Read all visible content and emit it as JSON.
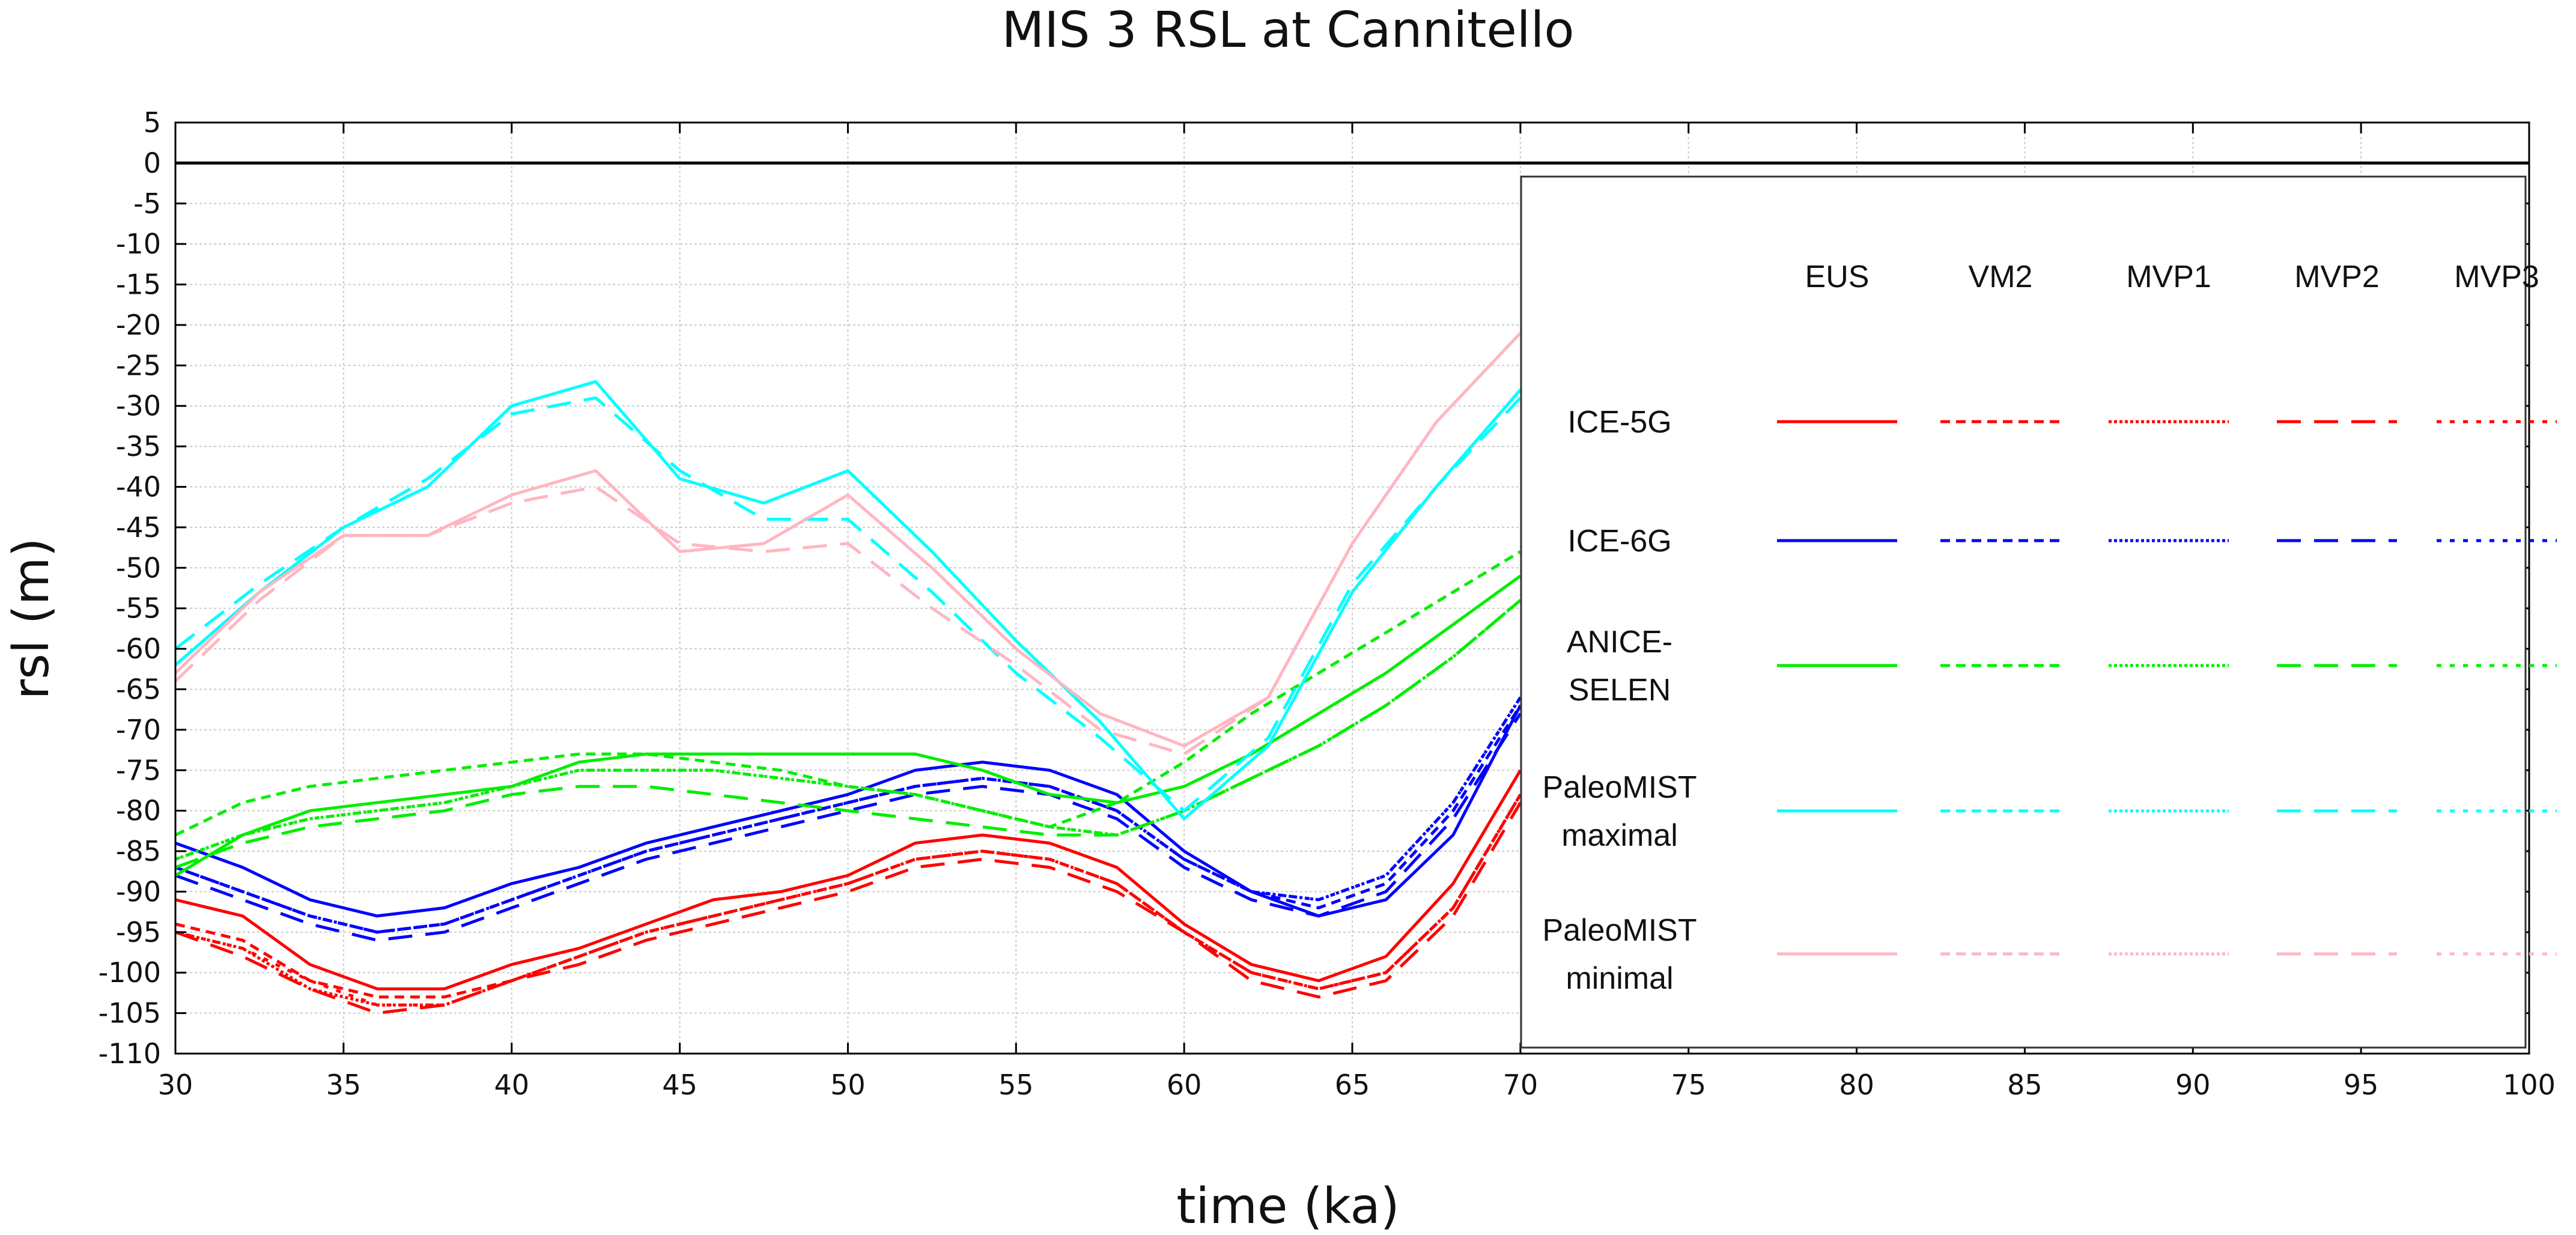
{
  "chart_data": {
    "type": "line",
    "title": "MIS 3 RSL at Cannitello",
    "xlabel": "time (ka)",
    "ylabel": "rsl (m)",
    "xlim": [
      30,
      100
    ],
    "ylim": [
      -110,
      5
    ],
    "xticks": [
      30,
      35,
      40,
      45,
      50,
      55,
      60,
      65,
      70,
      75,
      80,
      85,
      90,
      95,
      100
    ],
    "yticks": [
      5,
      0,
      -5,
      -10,
      -15,
      -20,
      -25,
      -30,
      -35,
      -40,
      -45,
      -50,
      -55,
      -60,
      -65,
      -70,
      -75,
      -80,
      -85,
      -90,
      -95,
      -100,
      -105,
      -110
    ],
    "grid": true,
    "zero_line": 0,
    "legend": {
      "placement": "right",
      "columns": [
        "EUS",
        "VM2",
        "MVP1",
        "MVP2",
        "MVP3"
      ],
      "rows": [
        {
          "label": [
            "ICE-5G"
          ],
          "color": "#ff0000"
        },
        {
          "label": [
            "ICE-6G"
          ],
          "color": "#0000ff"
        },
        {
          "label": [
            "ANICE-",
            "SELEN"
          ],
          "color": "#00ee00"
        },
        {
          "label": [
            "PaleoMIST",
            "maximal"
          ],
          "color": "#00ffff"
        },
        {
          "label": [
            "PaleoMIST",
            "minimal"
          ],
          "color": "#ffb6c1"
        }
      ],
      "styles": [
        {
          "name": "EUS",
          "dash": "solid"
        },
        {
          "name": "VM2",
          "dash": "short-dash"
        },
        {
          "name": "MVP1",
          "dash": "fine-dot"
        },
        {
          "name": "MVP2",
          "dash": "long-dash"
        },
        {
          "name": "MVP3",
          "dash": "dotted"
        }
      ]
    },
    "series": [
      {
        "name": "ICE-5G EUS",
        "color": "#ff0000",
        "dash": "solid",
        "x": [
          30,
          32,
          34,
          36,
          38,
          40,
          42,
          44,
          46,
          48,
          50,
          52,
          54,
          56,
          58,
          60,
          62,
          64,
          66,
          68,
          70
        ],
        "y": [
          -91,
          -93,
          -99,
          -102,
          -102,
          -99,
          -97,
          -94,
          -91,
          -90,
          -88,
          -84,
          -83,
          -84,
          -87,
          -94,
          -99,
          -101,
          -98,
          -89,
          -75
        ]
      },
      {
        "name": "ICE-5G VM2",
        "color": "#ff0000",
        "dash": "short-dash",
        "x": [
          30,
          32,
          34,
          36,
          38,
          40,
          42,
          44,
          46,
          48,
          50,
          52,
          54,
          56,
          58,
          60,
          62,
          64,
          66,
          68,
          70
        ],
        "y": [
          -94,
          -96,
          -101,
          -103,
          -103,
          -101,
          -98,
          -95,
          -93,
          -91,
          -89,
          -86,
          -85,
          -86,
          -89,
          -95,
          -100,
          -102,
          -100,
          -92,
          -78
        ]
      },
      {
        "name": "ICE-5G MVP1",
        "color": "#ff0000",
        "dash": "fine-dot",
        "x": [
          30,
          32,
          34,
          36,
          38,
          40,
          42,
          44,
          46,
          48,
          50,
          52,
          54,
          56,
          58,
          60,
          62,
          64,
          66,
          68,
          70
        ],
        "y": [
          -95,
          -97,
          -102,
          -104,
          -104,
          -101,
          -98,
          -95,
          -93,
          -91,
          -89,
          -86,
          -85,
          -86,
          -89,
          -95,
          -100,
          -102,
          -100,
          -92,
          -78
        ]
      },
      {
        "name": "ICE-5G MVP2",
        "color": "#ff0000",
        "dash": "long-dash",
        "x": [
          30,
          32,
          34,
          36,
          38,
          40,
          42,
          44,
          46,
          48,
          50,
          52,
          54,
          56,
          58,
          60,
          62,
          64,
          66,
          68,
          70
        ],
        "y": [
          -95,
          -98,
          -102,
          -105,
          -104,
          -101,
          -99,
          -96,
          -94,
          -92,
          -90,
          -87,
          -86,
          -87,
          -90,
          -95,
          -101,
          -103,
          -101,
          -93,
          -79
        ]
      },
      {
        "name": "ICE-5G MVP3",
        "color": "#ff0000",
        "dash": "dotted",
        "x": [
          30,
          32,
          34,
          36,
          38,
          40,
          42,
          44,
          46,
          48,
          50,
          52,
          54,
          56,
          58,
          60,
          62,
          64,
          66,
          68,
          70
        ],
        "y": [
          -95,
          -97,
          -101,
          -104,
          -104,
          -101,
          -98,
          -95,
          -93,
          -91,
          -89,
          -86,
          -85,
          -86,
          -89,
          -95,
          -100,
          -102,
          -100,
          -92,
          -78
        ]
      },
      {
        "name": "ICE-6G EUS",
        "color": "#0000ff",
        "dash": "solid",
        "x": [
          30,
          32,
          34,
          36,
          38,
          40,
          42,
          44,
          46,
          48,
          50,
          52,
          54,
          56,
          58,
          60,
          62,
          64,
          66,
          68,
          70
        ],
        "y": [
          -84,
          -87,
          -91,
          -93,
          -92,
          -89,
          -87,
          -84,
          -82,
          -80,
          -78,
          -75,
          -74,
          -75,
          -78,
          -85,
          -90,
          -93,
          -91,
          -83,
          -67
        ]
      },
      {
        "name": "ICE-6G VM2",
        "color": "#0000ff",
        "dash": "short-dash",
        "x": [
          30,
          32,
          34,
          36,
          38,
          40,
          42,
          44,
          46,
          48,
          50,
          52,
          54,
          56,
          58,
          60,
          62,
          64,
          66,
          68,
          70
        ],
        "y": [
          -87,
          -90,
          -93,
          -95,
          -94,
          -91,
          -88,
          -85,
          -83,
          -81,
          -79,
          -77,
          -76,
          -77,
          -80,
          -86,
          -90,
          -92,
          -89,
          -80,
          -67
        ]
      },
      {
        "name": "ICE-6G MVP1",
        "color": "#0000ff",
        "dash": "fine-dot",
        "x": [
          30,
          32,
          34,
          36,
          38,
          40,
          42,
          44,
          46,
          48,
          50,
          52,
          54,
          56,
          58,
          60,
          62,
          64,
          66,
          68,
          70
        ],
        "y": [
          -87,
          -90,
          -93,
          -95,
          -94,
          -91,
          -88,
          -85,
          -83,
          -81,
          -79,
          -77,
          -76,
          -77,
          -80,
          -86,
          -90,
          -91,
          -88,
          -79,
          -66
        ]
      },
      {
        "name": "ICE-6G MVP2",
        "color": "#0000ff",
        "dash": "long-dash",
        "x": [
          30,
          32,
          34,
          36,
          38,
          40,
          42,
          44,
          46,
          48,
          50,
          52,
          54,
          56,
          58,
          60,
          62,
          64,
          66,
          68,
          70
        ],
        "y": [
          -88,
          -91,
          -94,
          -96,
          -95,
          -92,
          -89,
          -86,
          -84,
          -82,
          -80,
          -78,
          -77,
          -78,
          -81,
          -87,
          -91,
          -93,
          -90,
          -81,
          -68
        ]
      },
      {
        "name": "ICE-6G MVP3",
        "color": "#0000ff",
        "dash": "dotted",
        "x": [
          30,
          32,
          34,
          36,
          38,
          40,
          42,
          44,
          46,
          48,
          50,
          52,
          54,
          56,
          58,
          60,
          62,
          64,
          66,
          68,
          70
        ],
        "y": [
          -87,
          -90,
          -93,
          -95,
          -94,
          -91,
          -88,
          -85,
          -83,
          -81,
          -79,
          -77,
          -76,
          -77,
          -80,
          -86,
          -90,
          -91,
          -88,
          -79,
          -66
        ]
      },
      {
        "name": "ANICE-SELEN EUS",
        "color": "#00ee00",
        "dash": "solid",
        "x": [
          30,
          32,
          34,
          36,
          38,
          40,
          42,
          44,
          46,
          48,
          50,
          52,
          54,
          56,
          58,
          60,
          62,
          64,
          66,
          68,
          70
        ],
        "y": [
          -88,
          -83,
          -80,
          -79,
          -78,
          -77,
          -74,
          -73,
          -73,
          -73,
          -73,
          -73,
          -75,
          -78,
          -79,
          -77,
          -73,
          -68,
          -63,
          -57,
          -51
        ]
      },
      {
        "name": "ANICE-SELEN VM2",
        "color": "#00ee00",
        "dash": "short-dash",
        "x": [
          30,
          32,
          34,
          36,
          38,
          40,
          42,
          44,
          46,
          48,
          50,
          52,
          54,
          56,
          58,
          60,
          62,
          64,
          66,
          68,
          70
        ],
        "y": [
          -83,
          -79,
          -77,
          -76,
          -75,
          -74,
          -73,
          -73,
          -74,
          -75,
          -77,
          -78,
          -80,
          -82,
          -79,
          -74,
          -68,
          -63,
          -58,
          -53,
          -48
        ]
      },
      {
        "name": "ANICE-SELEN MVP1",
        "color": "#00ee00",
        "dash": "fine-dot",
        "x": [
          30,
          32,
          34,
          36,
          38,
          40,
          42,
          44,
          46,
          48,
          50,
          52,
          54,
          56,
          58,
          60,
          62,
          64,
          66,
          68,
          70
        ],
        "y": [
          -86,
          -83,
          -81,
          -80,
          -79,
          -77,
          -75,
          -75,
          -75,
          -76,
          -77,
          -78,
          -80,
          -82,
          -83,
          -80,
          -76,
          -72,
          -67,
          -61,
          -54
        ]
      },
      {
        "name": "ANICE-SELEN MVP2",
        "color": "#00ee00",
        "dash": "long-dash",
        "x": [
          30,
          32,
          34,
          36,
          38,
          40,
          42,
          44,
          46,
          48,
          50,
          52,
          54,
          56,
          58,
          60,
          62,
          64,
          66,
          68,
          70
        ],
        "y": [
          -87,
          -84,
          -82,
          -81,
          -80,
          -78,
          -77,
          -77,
          -78,
          -79,
          -80,
          -81,
          -82,
          -83,
          -83,
          -80,
          -76,
          -72,
          -67,
          -61,
          -54
        ]
      },
      {
        "name": "ANICE-SELEN MVP3",
        "color": "#00ee00",
        "dash": "dotted",
        "x": [
          30,
          32,
          34,
          36,
          38,
          40,
          42,
          44,
          46,
          48,
          50,
          52,
          54,
          56,
          58,
          60,
          62,
          64,
          66,
          68,
          70
        ],
        "y": [
          -86,
          -83,
          -81,
          -80,
          -79,
          -77,
          -75,
          -75,
          -75,
          -76,
          -77,
          -78,
          -80,
          -82,
          -83,
          -80,
          -76,
          -72,
          -67,
          -61,
          -54
        ]
      },
      {
        "name": "PaleoMIST maximal EUS",
        "color": "#00ffff",
        "dash": "solid",
        "x": [
          30,
          32.5,
          35,
          37.5,
          40,
          42.5,
          45,
          47.5,
          50,
          52.5,
          55,
          57.5,
          60,
          62.5,
          65,
          67.5,
          70
        ],
        "y": [
          -62,
          -53,
          -45,
          -40,
          -30,
          -27,
          -39,
          -42,
          -38,
          -48,
          -59,
          -69,
          -81,
          -72,
          -53,
          -40,
          -28
        ]
      },
      {
        "name": "PaleoMIST maximal VM2",
        "color": "#00ffff",
        "dash": "long-dash",
        "x": [
          30,
          32.5,
          35,
          37.5,
          40,
          42.5,
          45,
          47.5,
          50,
          52.5,
          55,
          57.5,
          60,
          62.5,
          65,
          67.5,
          70
        ],
        "y": [
          -60,
          -52,
          -45,
          -39,
          -31,
          -29,
          -38,
          -44,
          -44,
          -53,
          -63,
          -71,
          -80,
          -71,
          -52,
          -40,
          -29
        ]
      },
      {
        "name": "PaleoMIST minimal EUS",
        "color": "#ffb6c1",
        "dash": "solid",
        "x": [
          30,
          32.5,
          35,
          37.5,
          40,
          42.5,
          45,
          47.5,
          50,
          52.5,
          55,
          57.5,
          60,
          62.5,
          65,
          67.5,
          70
        ],
        "y": [
          -63,
          -53,
          -46,
          -46,
          -41,
          -38,
          -48,
          -47,
          -41,
          -50,
          -60,
          -68,
          -72,
          -66,
          -47,
          -32,
          -21
        ]
      },
      {
        "name": "PaleoMIST minimal VM2",
        "color": "#ffb6c1",
        "dash": "long-dash",
        "x": [
          30,
          32.5,
          35,
          37.5,
          40,
          42.5,
          45,
          47.5,
          50,
          52.5,
          55,
          57.5,
          60,
          62.5,
          65,
          67.5,
          70
        ],
        "y": [
          -64,
          -54,
          -46,
          -46,
          -42,
          -40,
          -47,
          -48,
          -47,
          -55,
          -62,
          -70,
          -73,
          -66,
          -47,
          -32,
          -21
        ]
      }
    ]
  }
}
